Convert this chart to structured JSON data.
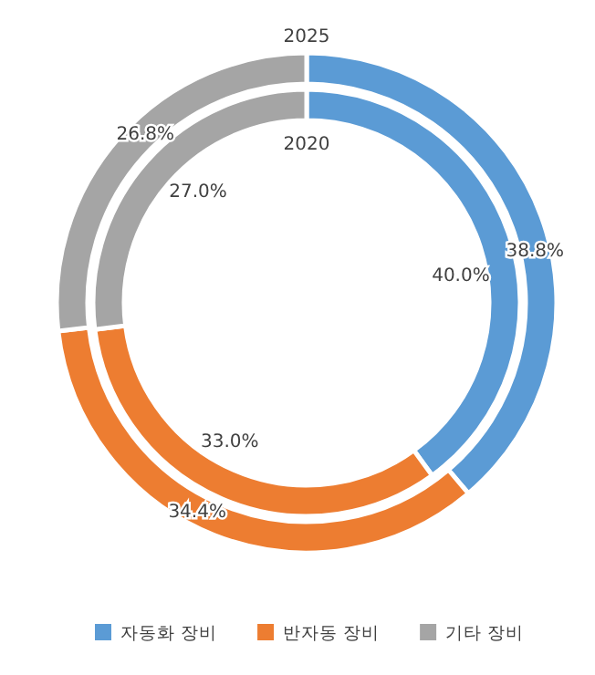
{
  "chart_data": {
    "type": "donut",
    "categories": [
      "자동화 장비",
      "반자동 장비",
      "기타 장비"
    ],
    "colors": [
      "#5b9bd5",
      "#ed7d31",
      "#a5a5a5"
    ],
    "series": [
      {
        "name": "2025",
        "values": [
          38.8,
          34.4,
          26.8
        ],
        "value_labels": [
          "38.8%",
          "34.4%",
          "26.8%"
        ]
      },
      {
        "name": "2020",
        "values": [
          40.0,
          33.0,
          27.0
        ],
        "value_labels": [
          "40.0%",
          "33.0%",
          "27.0%"
        ]
      }
    ],
    "legend": "bottom"
  }
}
